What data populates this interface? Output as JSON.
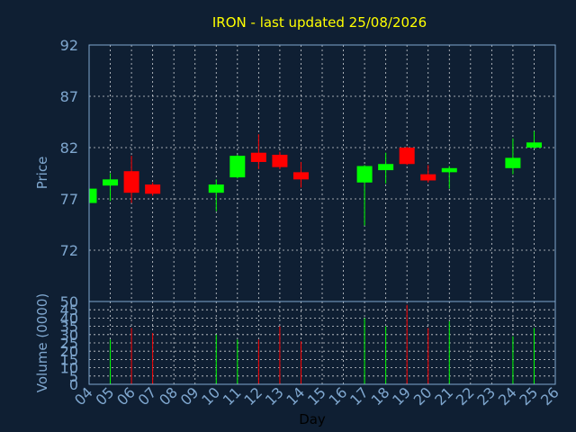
{
  "colors": {
    "background": "#0f1f33",
    "title": "#ffff00",
    "axis": "#7fa7cf",
    "grid": "#ffffff",
    "up": "#00ff00",
    "down": "#ff0000"
  },
  "chart_data": {
    "type": "candlestick",
    "title": "IRON - last updated 25/08/2026",
    "xlabel": "Day",
    "x_ticks": [
      "04",
      "05",
      "06",
      "07",
      "08",
      "09",
      "10",
      "11",
      "12",
      "13",
      "14",
      "15",
      "16",
      "17",
      "18",
      "19",
      "20",
      "21",
      "22",
      "23",
      "24",
      "25",
      "26"
    ],
    "grid": true,
    "price": {
      "ylabel": "Price",
      "ylim": [
        67,
        92
      ],
      "y_ticks": [
        92,
        87,
        82,
        77,
        72
      ],
      "candles": [
        {
          "day": "04",
          "open": 76.6,
          "close": 78.0,
          "high": 78.1,
          "low": 76.5
        },
        {
          "day": "05",
          "open": 78.3,
          "close": 78.9,
          "high": 79.5,
          "low": 76.8
        },
        {
          "day": "06",
          "open": 79.7,
          "close": 77.6,
          "high": 81.2,
          "low": 76.6
        },
        {
          "day": "07",
          "open": 78.4,
          "close": 77.5,
          "high": 78.6,
          "low": 77.3
        },
        {
          "day": "10",
          "open": 77.6,
          "close": 78.4,
          "high": 78.9,
          "low": 75.8
        },
        {
          "day": "11",
          "open": 79.1,
          "close": 81.2,
          "high": 81.3,
          "low": 79.0
        },
        {
          "day": "12",
          "open": 81.5,
          "close": 80.6,
          "high": 83.3,
          "low": 79.9
        },
        {
          "day": "13",
          "open": 81.3,
          "close": 80.1,
          "high": 81.6,
          "low": 79.9
        },
        {
          "day": "14",
          "open": 79.6,
          "close": 78.9,
          "high": 80.6,
          "low": 78.1
        },
        {
          "day": "17",
          "open": 78.6,
          "close": 80.2,
          "high": 80.3,
          "low": 74.4
        },
        {
          "day": "18",
          "open": 79.8,
          "close": 80.4,
          "high": 81.5,
          "low": 78.5
        },
        {
          "day": "19",
          "open": 82.0,
          "close": 80.4,
          "high": 82.1,
          "low": 80.3
        },
        {
          "day": "20",
          "open": 79.4,
          "close": 78.8,
          "high": 80.3,
          "low": 78.6
        },
        {
          "day": "21",
          "open": 79.6,
          "close": 80.0,
          "high": 80.2,
          "low": 78.0
        },
        {
          "day": "24",
          "open": 80.0,
          "close": 81.0,
          "high": 82.9,
          "low": 79.4
        },
        {
          "day": "25",
          "open": 82.0,
          "close": 82.5,
          "high": 83.6,
          "low": 81.9
        }
      ]
    },
    "volume": {
      "ylabel": "Volume (0000)",
      "ylim": [
        0,
        50
      ],
      "y_ticks": [
        50,
        45,
        40,
        35,
        30,
        25,
        20,
        15,
        10,
        5,
        0
      ],
      "bars": [
        {
          "day": "05",
          "value": 27,
          "dir": "up"
        },
        {
          "day": "06",
          "value": 34,
          "dir": "down"
        },
        {
          "day": "07",
          "value": 31,
          "dir": "down"
        },
        {
          "day": "10",
          "value": 30,
          "dir": "up"
        },
        {
          "day": "11",
          "value": 27,
          "dir": "up"
        },
        {
          "day": "12",
          "value": 27,
          "dir": "down"
        },
        {
          "day": "13",
          "value": 35,
          "dir": "down"
        },
        {
          "day": "14",
          "value": 26,
          "dir": "down"
        },
        {
          "day": "17",
          "value": 40,
          "dir": "up"
        },
        {
          "day": "18",
          "value": 35,
          "dir": "up"
        },
        {
          "day": "19",
          "value": 48,
          "dir": "down"
        },
        {
          "day": "20",
          "value": 34,
          "dir": "down"
        },
        {
          "day": "21",
          "value": 38,
          "dir": "up"
        },
        {
          "day": "24",
          "value": 29,
          "dir": "up"
        },
        {
          "day": "25",
          "value": 34,
          "dir": "up"
        }
      ]
    }
  }
}
